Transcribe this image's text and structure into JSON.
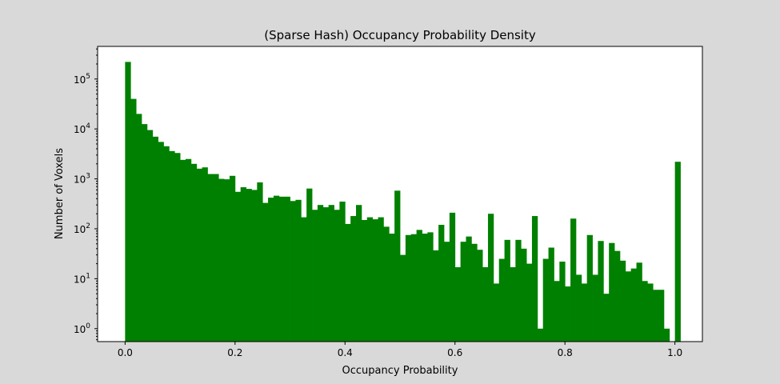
{
  "figure_background": "#d9d9d9",
  "chart_data": {
    "type": "bar",
    "title": "(Sparse Hash) Occupancy Probability Density",
    "xlabel": "Occupancy Probability",
    "ylabel": "Number of Voxels",
    "bar_color": "#008000",
    "y_scale": "log",
    "xlim": [
      -0.05,
      1.05
    ],
    "ylim": [
      0.55,
      450000
    ],
    "grid": false,
    "bin_start": 0.0,
    "bin_width": 0.01,
    "x_ticks": [
      "0.0",
      "0.2",
      "0.4",
      "0.6",
      "0.8",
      "1.0"
    ],
    "y_ticks": [
      "10^0",
      "10^1",
      "10^2",
      "10^3",
      "10^4",
      "10^5"
    ],
    "values": [
      220000,
      40000,
      20000,
      12500,
      9500,
      7000,
      5500,
      4500,
      3600,
      3300,
      2400,
      2500,
      2000,
      1600,
      1700,
      1250,
      1250,
      1000,
      980,
      1150,
      550,
      680,
      630,
      600,
      850,
      330,
      420,
      460,
      440,
      440,
      360,
      380,
      170,
      640,
      240,
      300,
      270,
      300,
      240,
      350,
      125,
      180,
      300,
      150,
      170,
      155,
      170,
      110,
      80,
      580,
      30,
      75,
      78,
      95,
      80,
      85,
      37,
      120,
      55,
      210,
      17,
      55,
      70,
      50,
      38,
      17,
      200,
      8,
      25,
      60,
      17,
      60,
      40,
      20,
      180,
      1,
      25,
      42,
      9,
      22,
      7,
      160,
      12,
      8,
      75,
      12,
      57,
      5,
      52,
      36,
      23,
      14,
      16,
      21,
      9,
      8,
      6,
      6,
      1,
      0,
      2200
    ]
  }
}
